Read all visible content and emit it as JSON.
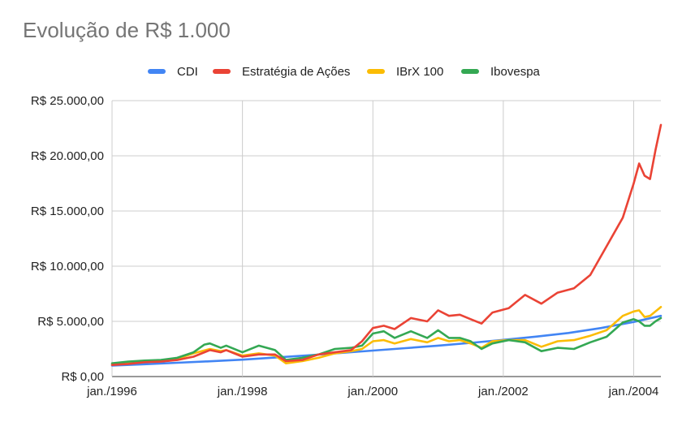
{
  "chart_data": {
    "type": "line",
    "title": "Evolução de R$ 1.000",
    "xlabel": "",
    "ylabel": "",
    "ylim": [
      0,
      25000
    ],
    "xlim": [
      "1996-01",
      "2004-06"
    ],
    "y_ticks": [
      "R$ 0,00",
      "R$ 5.000,00",
      "R$ 10.000,00",
      "R$ 15.000,00",
      "R$ 20.000,00",
      "R$ 25.000,00"
    ],
    "y_tick_values": [
      0,
      5000,
      10000,
      15000,
      20000,
      25000
    ],
    "x_ticks": [
      "jan./1996",
      "jan./1998",
      "jan./2000",
      "jan./2002",
      "jan./2004"
    ],
    "x_tick_values": [
      "1996-01",
      "1998-01",
      "2000-01",
      "2002-01",
      "2004-01"
    ],
    "grid": true,
    "legend_position": "top",
    "series": [
      {
        "name": "CDI",
        "color": "#4285f4",
        "points": [
          [
            "1996-01",
            1000
          ],
          [
            "1996-07",
            1120
          ],
          [
            "1997-01",
            1250
          ],
          [
            "1997-07",
            1380
          ],
          [
            "1998-01",
            1530
          ],
          [
            "1998-07",
            1720
          ],
          [
            "1999-01",
            1920
          ],
          [
            "1999-07",
            2130
          ],
          [
            "2000-01",
            2350
          ],
          [
            "2000-07",
            2570
          ],
          [
            "2001-01",
            2800
          ],
          [
            "2001-07",
            3050
          ],
          [
            "2002-01",
            3320
          ],
          [
            "2002-07",
            3620
          ],
          [
            "2003-01",
            3950
          ],
          [
            "2003-07",
            4400
          ],
          [
            "2004-01",
            4950
          ],
          [
            "2004-06",
            5500
          ]
        ]
      },
      {
        "name": "Estratégia de Ações",
        "color": "#ea4335",
        "points": [
          [
            "1996-01",
            1050
          ],
          [
            "1996-04",
            1150
          ],
          [
            "1996-07",
            1300
          ],
          [
            "1996-10",
            1350
          ],
          [
            "1997-01",
            1500
          ],
          [
            "1997-04",
            1800
          ],
          [
            "1997-07",
            2400
          ],
          [
            "1997-09",
            2200
          ],
          [
            "1997-10",
            2400
          ],
          [
            "1998-01",
            1800
          ],
          [
            "1998-04",
            2000
          ],
          [
            "1998-07",
            2000
          ],
          [
            "1998-09",
            1400
          ],
          [
            "1998-12",
            1500
          ],
          [
            "1999-03",
            2000
          ],
          [
            "1999-06",
            2200
          ],
          [
            "1999-09",
            2400
          ],
          [
            "1999-11",
            3200
          ],
          [
            "2000-01",
            4400
          ],
          [
            "2000-03",
            4600
          ],
          [
            "2000-05",
            4300
          ],
          [
            "2000-08",
            5300
          ],
          [
            "2000-11",
            5000
          ],
          [
            "2001-01",
            6000
          ],
          [
            "2001-03",
            5500
          ],
          [
            "2001-05",
            5600
          ],
          [
            "2001-07",
            5200
          ],
          [
            "2001-09",
            4800
          ],
          [
            "2001-11",
            5800
          ],
          [
            "2002-02",
            6200
          ],
          [
            "2002-05",
            7400
          ],
          [
            "2002-08",
            6600
          ],
          [
            "2002-11",
            7600
          ],
          [
            "2003-02",
            8000
          ],
          [
            "2003-05",
            9200
          ],
          [
            "2003-08",
            11800
          ],
          [
            "2003-11",
            14400
          ],
          [
            "2004-01",
            17500
          ],
          [
            "2004-02",
            19300
          ],
          [
            "2004-03",
            18200
          ],
          [
            "2004-04",
            17900
          ],
          [
            "2004-05",
            20500
          ],
          [
            "2004-06",
            22800
          ]
        ]
      },
      {
        "name": "IBrX 100",
        "color": "#fbbc04",
        "points": [
          [
            "1996-01",
            1100
          ],
          [
            "1996-04",
            1250
          ],
          [
            "1996-07",
            1400
          ],
          [
            "1996-10",
            1450
          ],
          [
            "1997-01",
            1600
          ],
          [
            "1997-04",
            2100
          ],
          [
            "1997-07",
            2500
          ],
          [
            "1997-09",
            2300
          ],
          [
            "1997-10",
            2400
          ],
          [
            "1998-01",
            1900
          ],
          [
            "1998-04",
            2100
          ],
          [
            "1998-07",
            1900
          ],
          [
            "1998-09",
            1200
          ],
          [
            "1998-12",
            1400
          ],
          [
            "1999-03",
            1700
          ],
          [
            "1999-06",
            2100
          ],
          [
            "1999-09",
            2300
          ],
          [
            "1999-11",
            2500
          ],
          [
            "2000-01",
            3200
          ],
          [
            "2000-03",
            3300
          ],
          [
            "2000-05",
            3000
          ],
          [
            "2000-08",
            3400
          ],
          [
            "2000-11",
            3100
          ],
          [
            "2001-01",
            3500
          ],
          [
            "2001-03",
            3200
          ],
          [
            "2001-05",
            3300
          ],
          [
            "2001-07",
            3000
          ],
          [
            "2001-09",
            2600
          ],
          [
            "2001-11",
            3200
          ],
          [
            "2002-02",
            3300
          ],
          [
            "2002-05",
            3300
          ],
          [
            "2002-08",
            2700
          ],
          [
            "2002-11",
            3200
          ],
          [
            "2003-02",
            3300
          ],
          [
            "2003-05",
            3700
          ],
          [
            "2003-08",
            4200
          ],
          [
            "2003-11",
            5500
          ],
          [
            "2004-01",
            5900
          ],
          [
            "2004-02",
            6000
          ],
          [
            "2004-03",
            5400
          ],
          [
            "2004-04",
            5500
          ],
          [
            "2004-05",
            5900
          ],
          [
            "2004-06",
            6300
          ]
        ]
      },
      {
        "name": "Ibovespa",
        "color": "#34a853",
        "points": [
          [
            "1996-01",
            1200
          ],
          [
            "1996-04",
            1350
          ],
          [
            "1996-07",
            1450
          ],
          [
            "1996-10",
            1500
          ],
          [
            "1997-01",
            1700
          ],
          [
            "1997-04",
            2200
          ],
          [
            "1997-06",
            2900
          ],
          [
            "1997-07",
            3000
          ],
          [
            "1997-09",
            2600
          ],
          [
            "1997-10",
            2800
          ],
          [
            "1998-01",
            2200
          ],
          [
            "1998-04",
            2800
          ],
          [
            "1998-07",
            2400
          ],
          [
            "1998-09",
            1500
          ],
          [
            "1998-12",
            1700
          ],
          [
            "1999-03",
            2000
          ],
          [
            "1999-06",
            2500
          ],
          [
            "1999-09",
            2600
          ],
          [
            "1999-11",
            2800
          ],
          [
            "2000-01",
            3900
          ],
          [
            "2000-03",
            4100
          ],
          [
            "2000-05",
            3500
          ],
          [
            "2000-08",
            4100
          ],
          [
            "2000-11",
            3500
          ],
          [
            "2001-01",
            4200
          ],
          [
            "2001-03",
            3500
          ],
          [
            "2001-05",
            3500
          ],
          [
            "2001-07",
            3200
          ],
          [
            "2001-09",
            2500
          ],
          [
            "2001-11",
            3000
          ],
          [
            "2002-02",
            3300
          ],
          [
            "2002-05",
            3100
          ],
          [
            "2002-08",
            2300
          ],
          [
            "2002-11",
            2600
          ],
          [
            "2003-02",
            2500
          ],
          [
            "2003-05",
            3100
          ],
          [
            "2003-08",
            3600
          ],
          [
            "2003-11",
            4900
          ],
          [
            "2004-01",
            5200
          ],
          [
            "2004-02",
            5000
          ],
          [
            "2004-03",
            4600
          ],
          [
            "2004-04",
            4600
          ],
          [
            "2004-05",
            5000
          ],
          [
            "2004-06",
            5300
          ]
        ]
      }
    ]
  }
}
